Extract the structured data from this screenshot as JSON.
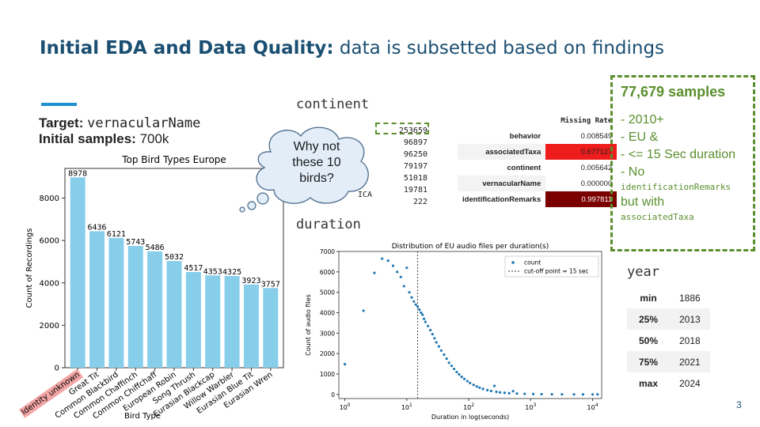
{
  "slide": {
    "title_bold": "Initial EDA and Data Quality:",
    "title_rest": " data is subsetted based on findings",
    "target_label": "Target:",
    "target_value": "vernacularName",
    "samples_label": "Initial samples:",
    "samples_value": "700k",
    "page_number": "3"
  },
  "bubble": {
    "text_line1": "Why not",
    "text_line2": "these 10",
    "text_line3": "birds?"
  },
  "continent": {
    "heading": "continent",
    "counts": [
      "253659",
      "96897",
      "96250",
      "79197",
      "51018",
      "19781",
      "222"
    ],
    "partial_label": "ICA"
  },
  "missing_table": {
    "header": "Missing Rate",
    "rows": [
      {
        "label": "behavior",
        "value": "0.008549",
        "color": "#ffffff"
      },
      {
        "label": "associatedTaxa",
        "value": "0.677127",
        "color": "#ee1c1c"
      },
      {
        "label": "continent",
        "value": "0.005642",
        "color": "#ffffff"
      },
      {
        "label": "vernacularName",
        "value": "0.000000",
        "color": "#ffffff"
      },
      {
        "label": "identificationRemarks",
        "value": "0.997811",
        "color": "#7a0000"
      }
    ]
  },
  "duration": {
    "heading": "duration"
  },
  "summary_box": {
    "title": "77,679 samples",
    "line1": "- 2010+",
    "line2": "- EU &",
    "line3": "- <= 15 Sec duration",
    "line4": "- No",
    "mono1": "identificationRemarks",
    "line5": "but with",
    "mono2": "associatedTaxa"
  },
  "year": {
    "heading": "year",
    "rows": [
      {
        "k": "min",
        "v": "1886"
      },
      {
        "k": "25%",
        "v": "2013"
      },
      {
        "k": "50%",
        "v": "2018"
      },
      {
        "k": "75%",
        "v": "2021"
      },
      {
        "k": "max",
        "v": "2024"
      }
    ]
  },
  "chart_data": [
    {
      "type": "bar",
      "title": "Top Bird Types Europe",
      "xlabel": "Bird Type",
      "ylabel": "Count of Recordings",
      "ylim": [
        0,
        9400
      ],
      "yticks": [
        0,
        2000,
        4000,
        6000,
        8000
      ],
      "bar_color": "#87ceeb",
      "highlight_color": "#f4a6a6",
      "categories": [
        "Identity unknown",
        "Great Tit",
        "Common Blackbird",
        "Common Chaffinch",
        "Common Chiffchaff",
        "European Robin",
        "Song Thrush",
        "Eurasian Blackcap",
        "Willow Warbler",
        "Eurasian Blue Tit",
        "Eurasian Wren"
      ],
      "values": [
        8978,
        6436,
        6121,
        5743,
        5486,
        5032,
        4517,
        4353,
        4325,
        3923,
        3757
      ]
    },
    {
      "type": "scatter",
      "title": "Distribution of EU audio files per duration(s)",
      "xlabel": "Duration in log(seconds)",
      "ylabel": "Count of audio files",
      "xscale": "log",
      "xlim": [
        0.8,
        14000
      ],
      "ylim": [
        -200,
        7000
      ],
      "yticks": [
        0,
        1000,
        2000,
        3000,
        4000,
        5000,
        6000,
        7000
      ],
      "xticks": [
        "10^0",
        "10^1",
        "10^2",
        "10^3",
        "10^4"
      ],
      "point_color": "#1f77b4",
      "legend": {
        "series": "count",
        "cutoff": "cut-off point = 15 sec",
        "position": "top-right"
      },
      "cutoff_x": 15,
      "points": [
        [
          1,
          1480
        ],
        [
          2,
          4100
        ],
        [
          3,
          5950
        ],
        [
          4,
          6650
        ],
        [
          5,
          6550
        ],
        [
          6,
          6300
        ],
        [
          7,
          6000
        ],
        [
          8,
          5750
        ],
        [
          9,
          5300
        ],
        [
          10,
          6200
        ],
        [
          11,
          5000
        ],
        [
          12,
          4750
        ],
        [
          13,
          4550
        ],
        [
          14,
          4400
        ],
        [
          15,
          4300
        ],
        [
          16,
          4150
        ],
        [
          17,
          4000
        ],
        [
          18,
          3900
        ],
        [
          19,
          3700
        ],
        [
          20,
          3550
        ],
        [
          22,
          3350
        ],
        [
          24,
          3150
        ],
        [
          26,
          2950
        ],
        [
          28,
          2750
        ],
        [
          30,
          2550
        ],
        [
          33,
          2350
        ],
        [
          36,
          2150
        ],
        [
          40,
          1950
        ],
        [
          44,
          1750
        ],
        [
          48,
          1550
        ],
        [
          53,
          1400
        ],
        [
          58,
          1250
        ],
        [
          64,
          1100
        ],
        [
          70,
          980
        ],
        [
          77,
          860
        ],
        [
          85,
          760
        ],
        [
          95,
          650
        ],
        [
          105,
          560
        ],
        [
          120,
          470
        ],
        [
          135,
          390
        ],
        [
          150,
          330
        ],
        [
          170,
          270
        ],
        [
          200,
          210
        ],
        [
          230,
          170
        ],
        [
          260,
          420
        ],
        [
          280,
          130
        ],
        [
          320,
          100
        ],
        [
          380,
          80
        ],
        [
          450,
          60
        ],
        [
          520,
          160
        ],
        [
          600,
          45
        ],
        [
          800,
          30
        ],
        [
          1100,
          22
        ],
        [
          1500,
          15
        ],
        [
          2200,
          10
        ],
        [
          3200,
          6
        ],
        [
          5000,
          4
        ],
        [
          7000,
          2
        ],
        [
          10000,
          1
        ],
        [
          12000,
          2
        ]
      ]
    }
  ]
}
